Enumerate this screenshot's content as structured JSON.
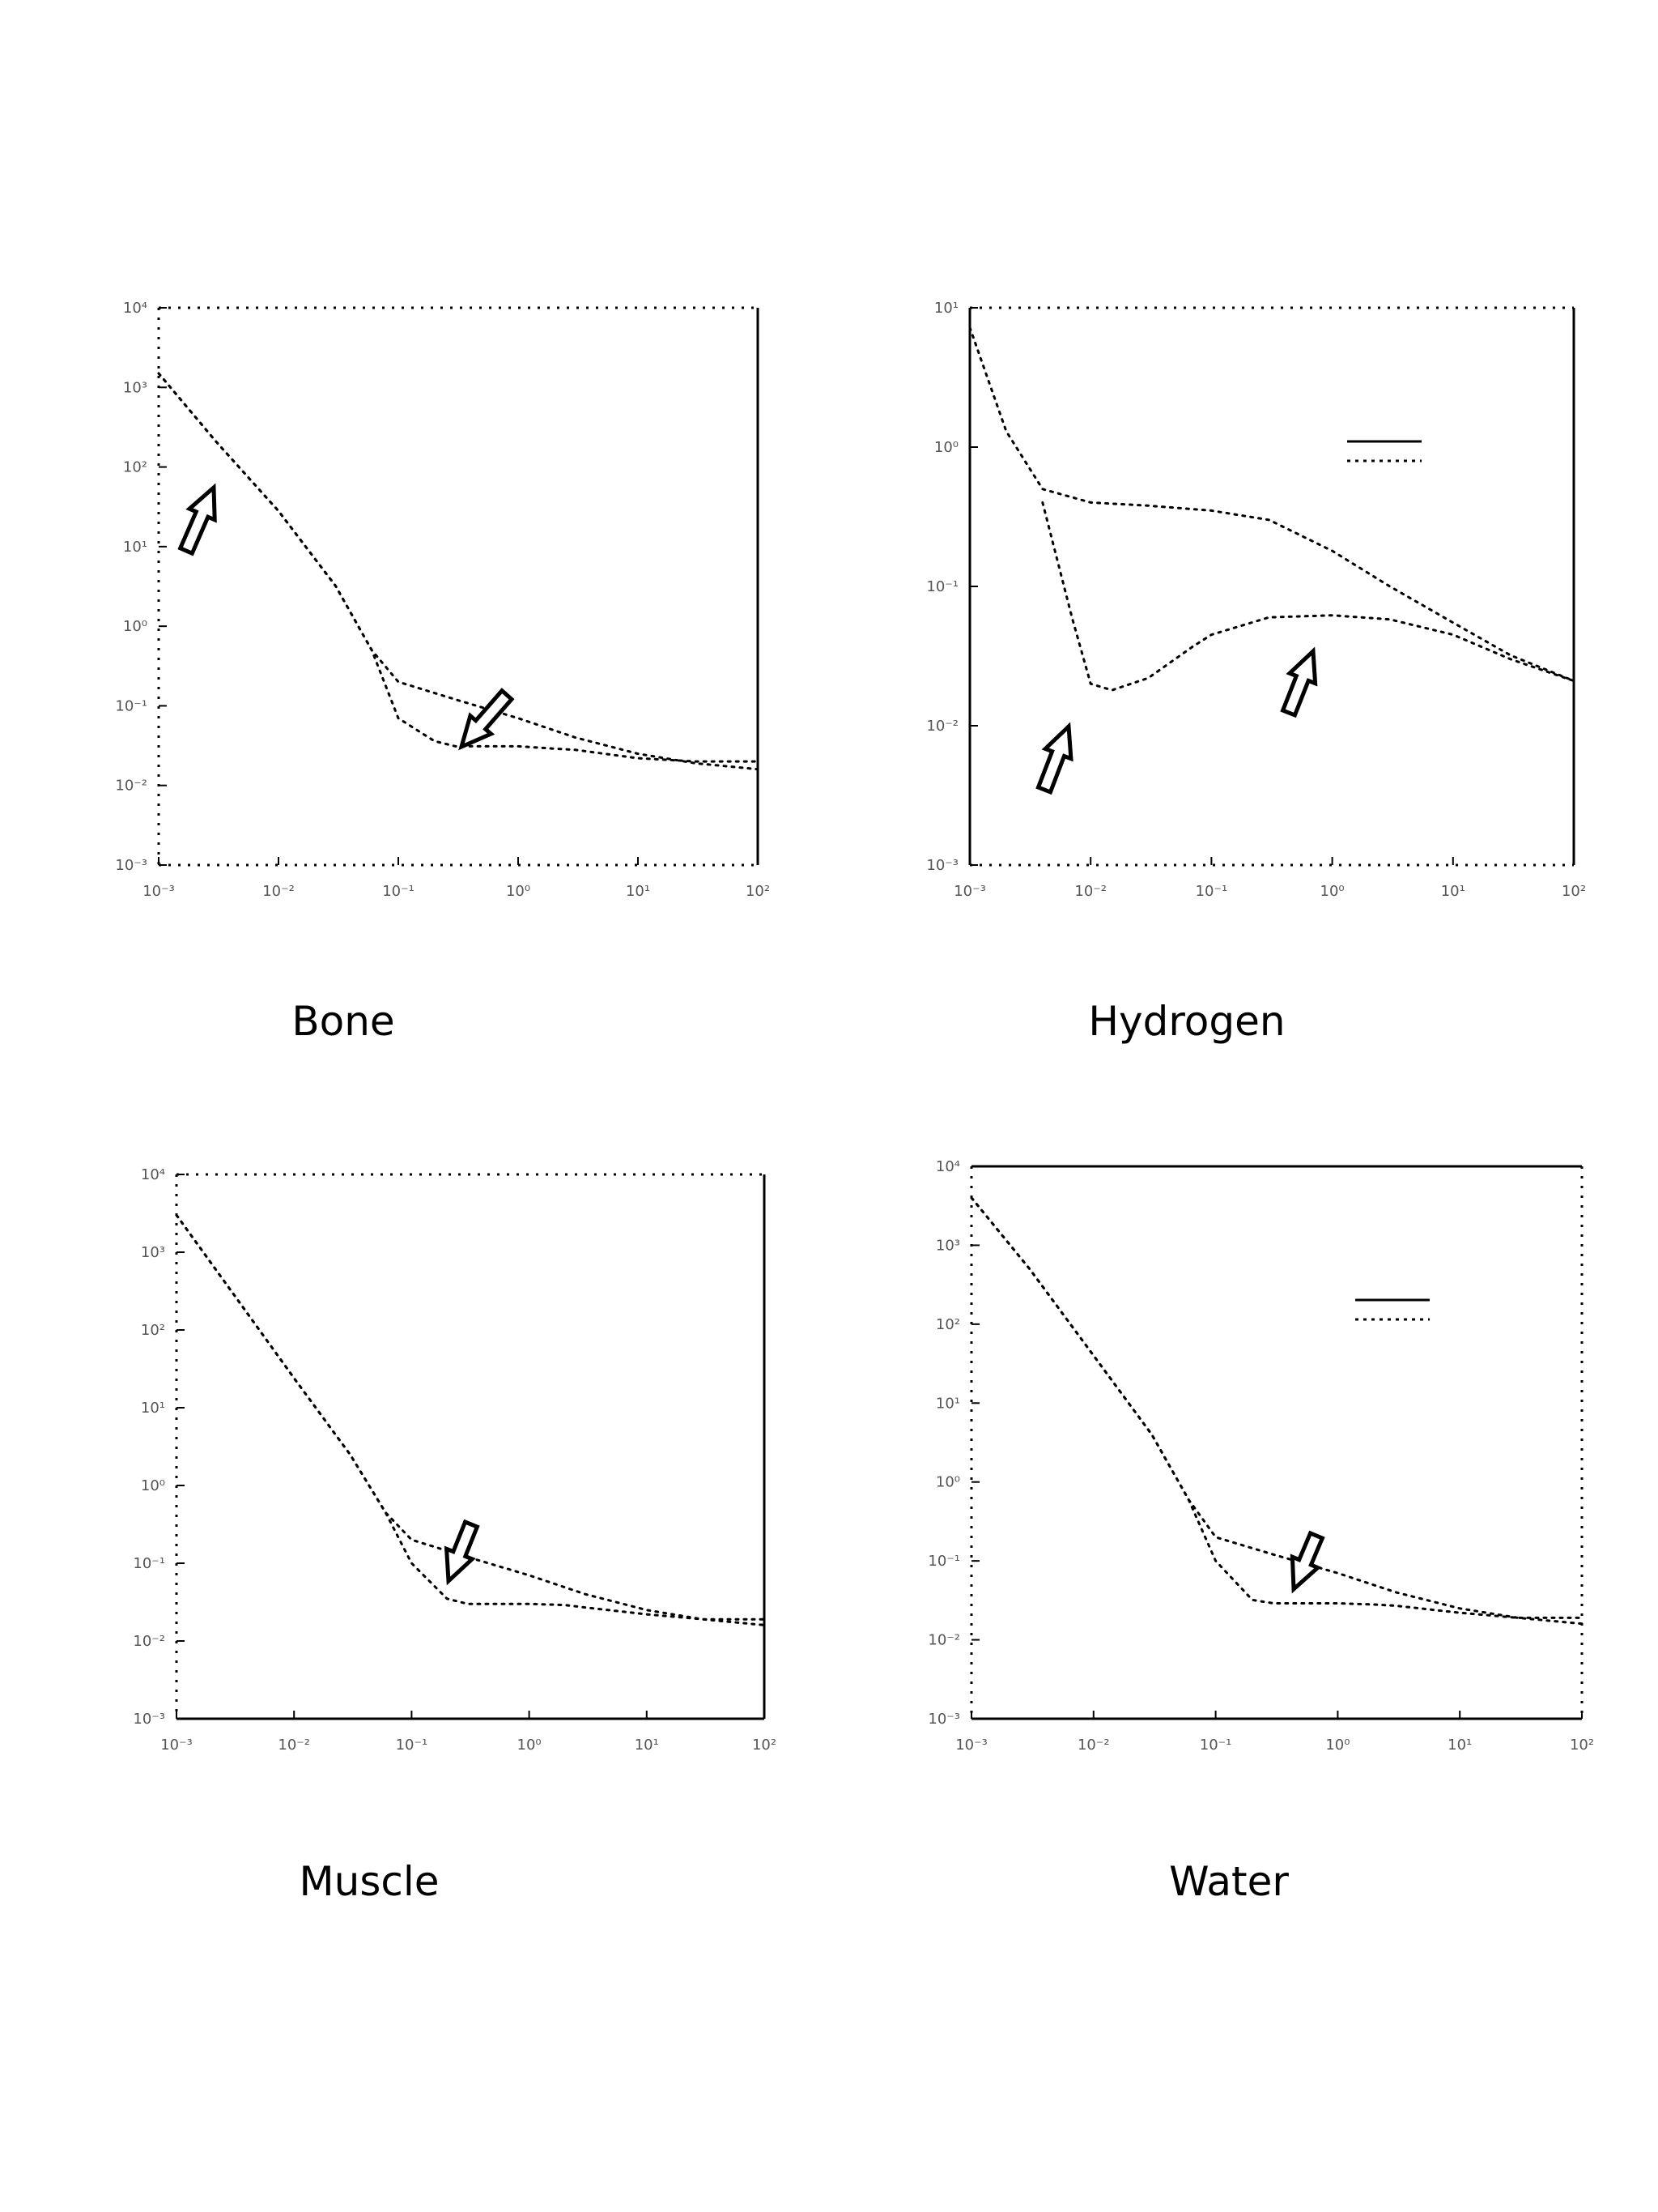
{
  "captions": {
    "bone": "Bone",
    "hydrogen": "Hydrogen",
    "muscle": "Muscle",
    "water": "Water"
  },
  "chart_data": [
    {
      "type": "line",
      "panel": "Bone",
      "x_scale": "log",
      "y_scale": "log",
      "xlim": [
        0.001,
        100
      ],
      "ylim": [
        0.001,
        10000
      ],
      "x_tick_labels": [
        "10⁻³",
        "10⁻²",
        "10⁻¹",
        "10⁰",
        "10¹",
        "10²"
      ],
      "y_tick_labels": [
        "10⁴",
        "10³",
        "10²",
        "10¹",
        "10⁰",
        "10⁻¹",
        "10⁻²",
        "10⁻³"
      ],
      "series": [
        {
          "style": "dotted",
          "x": [
            0.001,
            0.003,
            0.01,
            0.03,
            0.06,
            0.1,
            0.3,
            1,
            3,
            10,
            30,
            100
          ],
          "y": [
            1500,
            210,
            28,
            3.2,
            0.5,
            0.2,
            0.12,
            0.07,
            0.04,
            0.025,
            0.019,
            0.016
          ]
        },
        {
          "style": "dotted",
          "x": [
            0.001,
            0.003,
            0.01,
            0.03,
            0.06,
            0.1,
            0.2,
            0.3,
            1,
            2,
            3,
            10,
            30,
            100
          ],
          "y": [
            1500,
            210,
            28,
            3.2,
            0.5,
            0.07,
            0.036,
            0.031,
            0.031,
            0.029,
            0.028,
            0.022,
            0.02,
            0.02
          ]
        }
      ],
      "annotations": [
        {
          "shape": "arrow",
          "points_to": "upper curve near 10⁻² MeV"
        },
        {
          "shape": "arrow",
          "points_to": "curve near 10⁻¹ MeV"
        }
      ]
    },
    {
      "type": "line",
      "panel": "Hydrogen",
      "x_scale": "log",
      "y_scale": "log",
      "xlim": [
        0.001,
        100
      ],
      "ylim": [
        0.001,
        10
      ],
      "x_tick_labels": [
        "10⁻³",
        "10⁻²",
        "10⁻¹",
        "10⁰",
        "10¹",
        "10²"
      ],
      "y_tick_labels": [
        "10¹",
        "10⁰",
        "10⁻¹",
        "10⁻²",
        "10⁻³"
      ],
      "series": [
        {
          "style": "dotted",
          "x": [
            0.001,
            0.002,
            0.004,
            0.01,
            0.03,
            0.1,
            0.3,
            1,
            3,
            10,
            30,
            100
          ],
          "y": [
            7.2,
            1.3,
            0.5,
            0.4,
            0.38,
            0.35,
            0.3,
            0.18,
            0.1,
            0.055,
            0.032,
            0.021
          ]
        },
        {
          "style": "dotted",
          "x": [
            0.004,
            0.007,
            0.01,
            0.015,
            0.03,
            0.07,
            0.1,
            0.3,
            1,
            3,
            10,
            30,
            100
          ],
          "y": [
            0.4,
            0.06,
            0.02,
            0.018,
            0.022,
            0.037,
            0.045,
            0.06,
            0.062,
            0.058,
            0.045,
            0.03,
            0.021
          ]
        }
      ],
      "annotations": [
        {
          "shape": "arrow",
          "points_to": "curve minimum near 10⁻² MeV"
        },
        {
          "shape": "arrow",
          "points_to": "curve near 10⁰ MeV"
        }
      ]
    },
    {
      "type": "line",
      "panel": "Muscle",
      "x_scale": "log",
      "y_scale": "log",
      "xlim": [
        0.001,
        100
      ],
      "ylim": [
        0.001,
        10000
      ],
      "x_tick_labels": [
        "10⁻³",
        "10⁻²",
        "10⁻¹",
        "10⁰",
        "10¹",
        "10²"
      ],
      "y_tick_labels": [
        "10⁴",
        "10³",
        "10²",
        "10¹",
        "10⁰",
        "10⁻¹",
        "10⁻²",
        "10⁻³"
      ],
      "series": [
        {
          "style": "dotted",
          "x": [
            0.001,
            0.003,
            0.01,
            0.03,
            0.06,
            0.1,
            0.3,
            1,
            3,
            10,
            30,
            100
          ],
          "y": [
            3000,
            300,
            24,
            2.5,
            0.45,
            0.2,
            0.12,
            0.07,
            0.04,
            0.025,
            0.019,
            0.016
          ]
        },
        {
          "style": "dotted",
          "x": [
            0.001,
            0.003,
            0.01,
            0.03,
            0.06,
            0.1,
            0.2,
            0.3,
            1,
            2,
            3,
            10,
            30,
            100
          ],
          "y": [
            3000,
            300,
            24,
            2.5,
            0.45,
            0.1,
            0.035,
            0.03,
            0.03,
            0.029,
            0.027,
            0.022,
            0.019,
            0.019
          ]
        }
      ],
      "annotations": [
        {
          "shape": "arrow",
          "points_to": "curve near 10⁰ MeV"
        }
      ]
    },
    {
      "type": "line",
      "panel": "Water",
      "x_scale": "log",
      "y_scale": "log",
      "xlim": [
        0.001,
        100
      ],
      "ylim": [
        0.001,
        10000
      ],
      "x_tick_labels": [
        "10⁻³",
        "10⁻²",
        "10⁻¹",
        "10⁰",
        "10¹",
        "10²"
      ],
      "y_tick_labels": [
        "10⁴",
        "10³",
        "10²",
        "10¹",
        "10⁰",
        "10⁻¹",
        "10⁻²",
        "10⁻³"
      ],
      "series": [
        {
          "style": "dotted",
          "x": [
            0.001,
            0.003,
            0.01,
            0.03,
            0.06,
            0.1,
            0.3,
            1,
            3,
            10,
            30,
            100
          ],
          "y": [
            4000,
            500,
            40,
            4,
            0.6,
            0.2,
            0.12,
            0.07,
            0.04,
            0.025,
            0.019,
            0.016
          ]
        },
        {
          "style": "dotted",
          "x": [
            0.001,
            0.003,
            0.01,
            0.03,
            0.06,
            0.1,
            0.2,
            0.3,
            1,
            2,
            3,
            10,
            30,
            100
          ],
          "y": [
            4000,
            500,
            40,
            4,
            0.6,
            0.1,
            0.032,
            0.029,
            0.029,
            0.028,
            0.027,
            0.022,
            0.019,
            0.019
          ]
        }
      ],
      "annotations": [
        {
          "shape": "arrow",
          "points_to": "curve near 10⁰ MeV"
        }
      ]
    }
  ]
}
